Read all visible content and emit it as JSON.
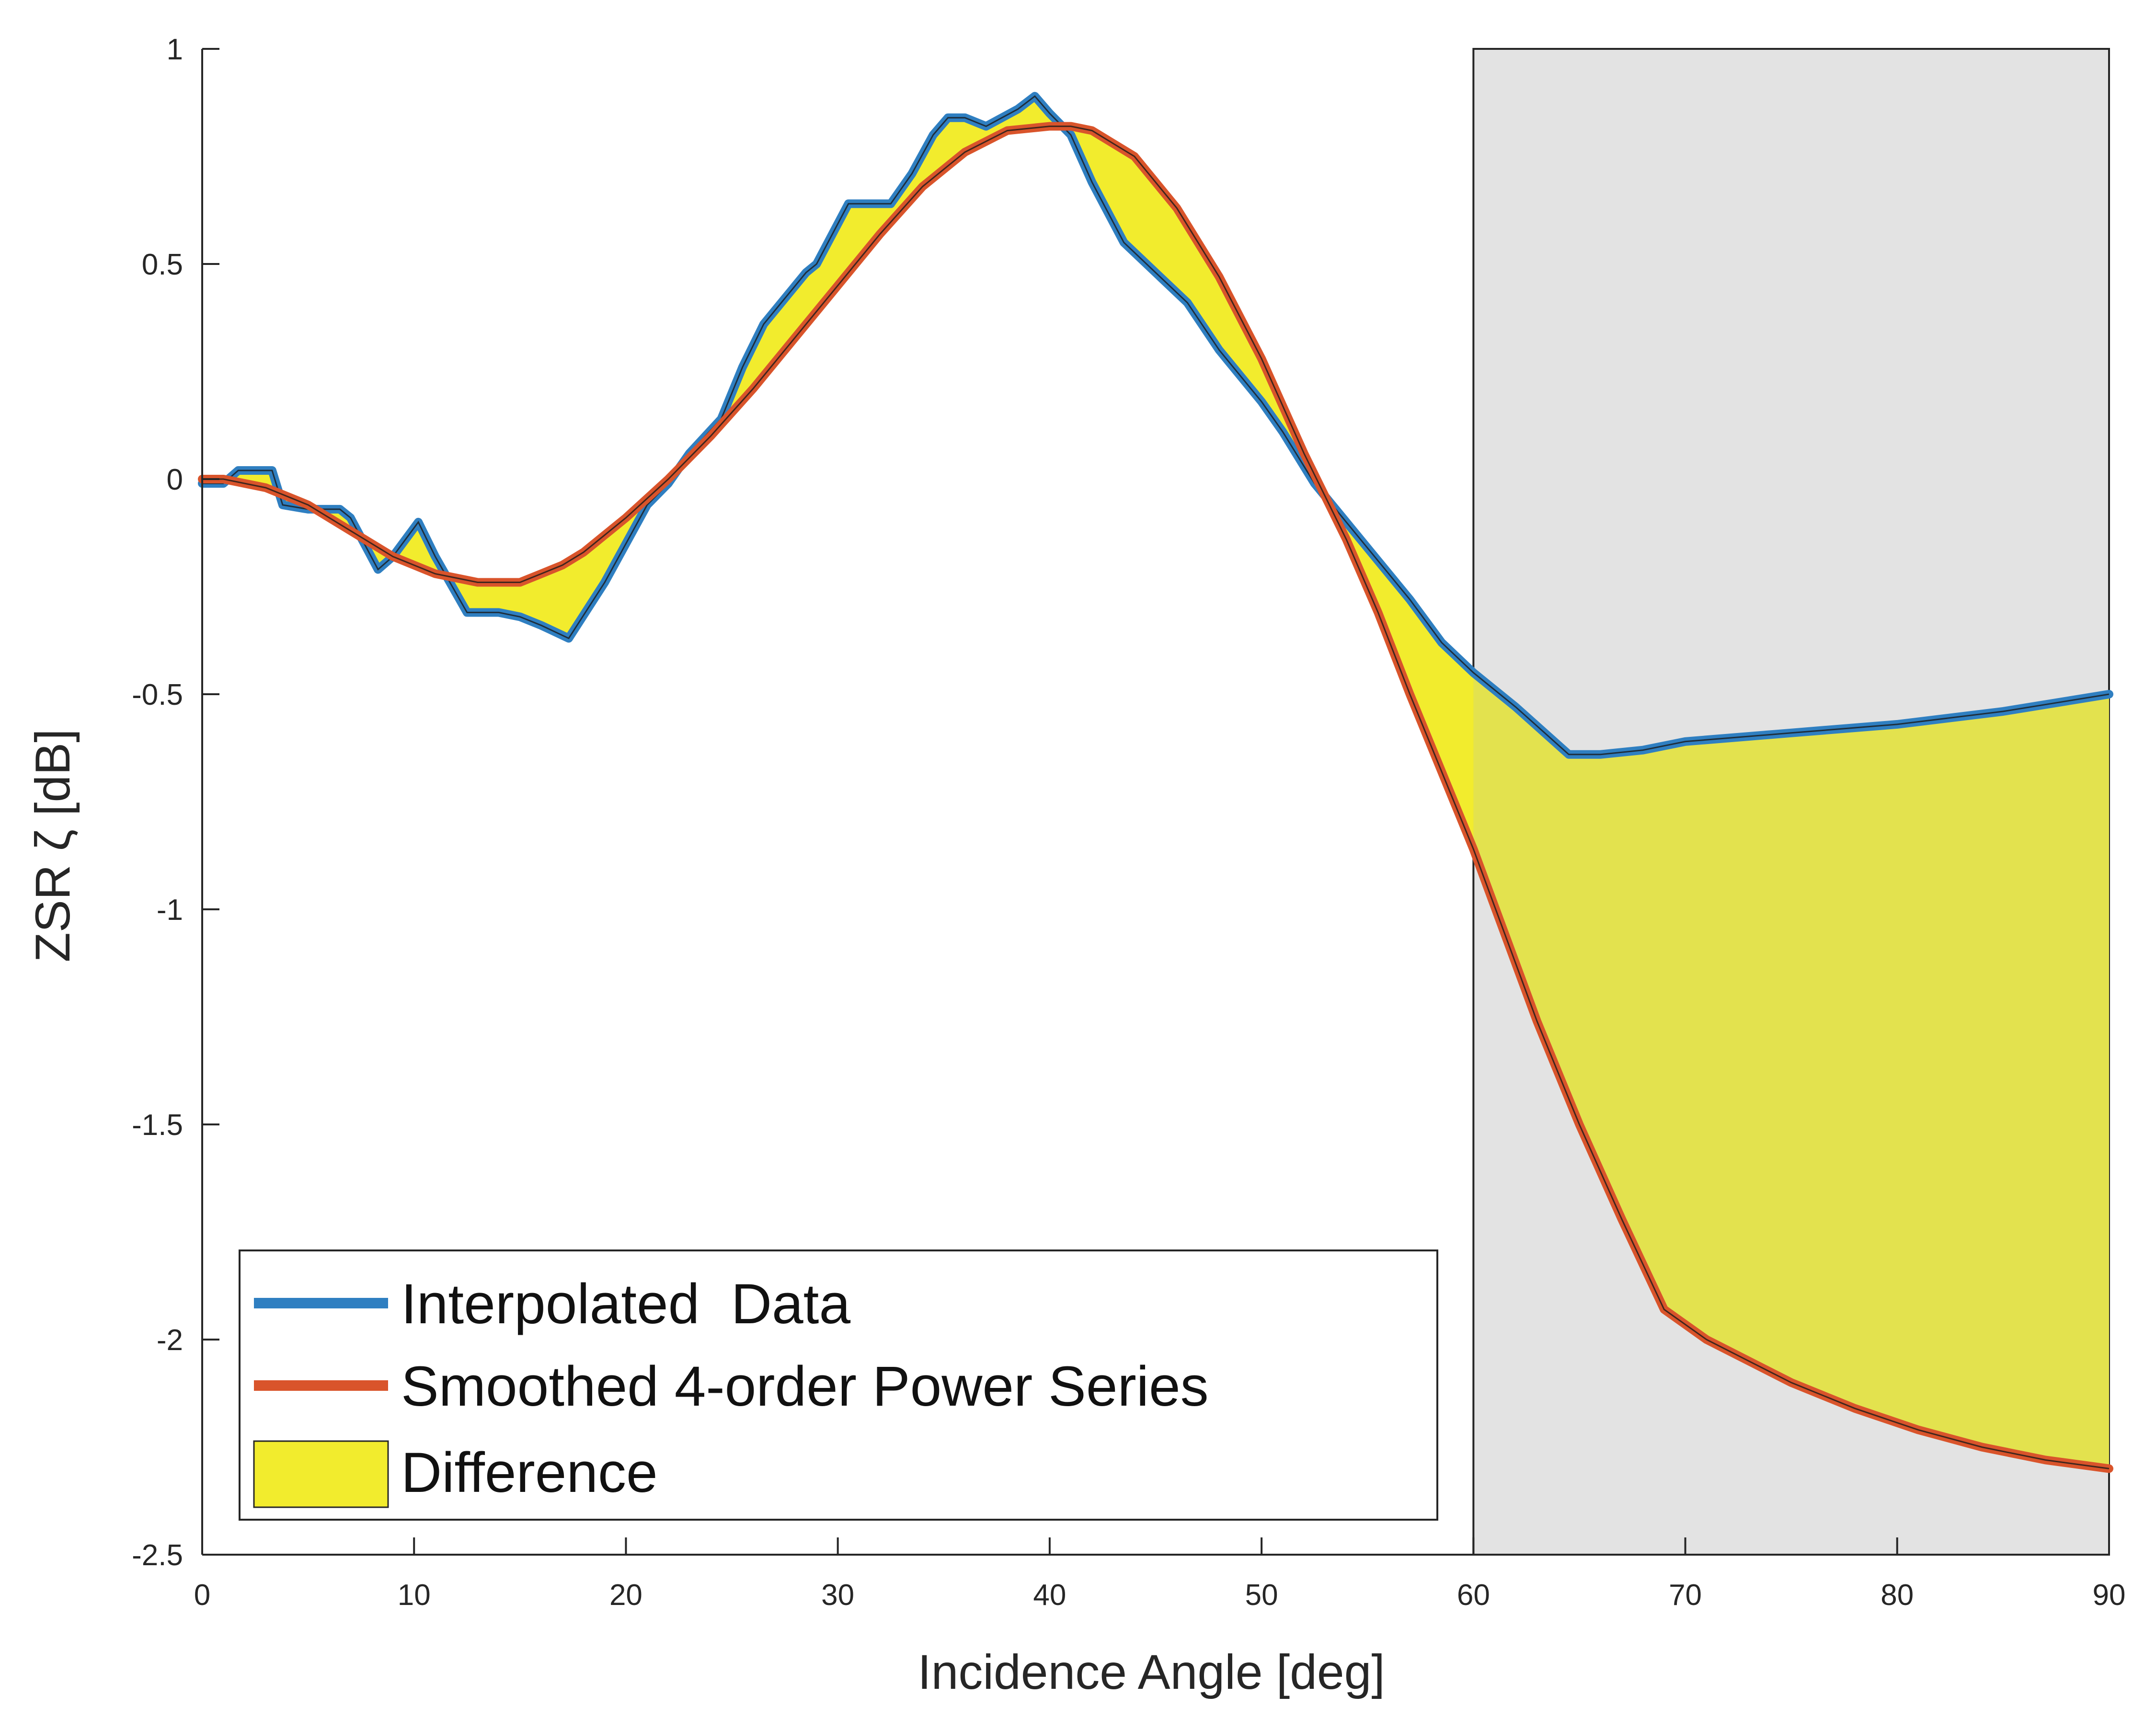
{
  "chart_data": {
    "type": "line",
    "xlabel": "Incidence Angle [deg]",
    "ylabel": "ZSR ζ [dB]",
    "xlim": [
      0,
      90
    ],
    "ylim": [
      -2.5,
      1
    ],
    "xticks": [
      "0",
      "10",
      "20",
      "30",
      "40",
      "50",
      "60",
      "70",
      "80",
      "90"
    ],
    "yticks": [
      "1",
      "0.5",
      "0",
      "-0.5",
      "-1",
      "-1.5",
      "-2",
      "-2.5"
    ],
    "grid": false,
    "shaded_region": {
      "x": [
        60,
        90
      ],
      "color": "#e3e3e3"
    },
    "legend": {
      "position": "bottom-left"
    },
    "series": [
      {
        "name": "Interpolated  Data",
        "color": "#2f7fc1",
        "x": [
          0,
          1,
          1.7,
          3.3,
          3.8,
          5,
          6.5,
          7,
          8.3,
          9,
          10.2,
          11,
          12.5,
          14,
          15,
          16,
          17.3,
          19,
          21,
          22,
          23,
          24.5,
          25.5,
          26.5,
          27.5,
          28.5,
          29,
          30.5,
          31.5,
          32.5,
          33.5,
          34.5,
          35.2,
          36,
          37,
          38.5,
          39.3,
          40,
          41,
          42,
          43.5,
          45,
          46.5,
          48,
          50,
          51,
          52.5,
          54,
          55.5,
          57,
          58.5,
          60,
          62,
          64.5,
          66,
          68,
          70,
          75,
          80,
          85,
          90
        ],
        "y": [
          -0.01,
          -0.01,
          0.02,
          0.02,
          -0.06,
          -0.07,
          -0.07,
          -0.09,
          -0.21,
          -0.18,
          -0.1,
          -0.18,
          -0.31,
          -0.31,
          -0.32,
          -0.34,
          -0.37,
          -0.24,
          -0.06,
          -0.01,
          0.06,
          0.14,
          0.26,
          0.36,
          0.42,
          0.48,
          0.5,
          0.64,
          0.64,
          0.64,
          0.71,
          0.8,
          0.84,
          0.84,
          0.82,
          0.86,
          0.89,
          0.85,
          0.8,
          0.69,
          0.55,
          0.48,
          0.41,
          0.3,
          0.18,
          0.11,
          -0.01,
          -0.1,
          -0.19,
          -0.28,
          -0.38,
          -0.45,
          -0.53,
          -0.64,
          -0.64,
          -0.63,
          -0.61,
          -0.59,
          -0.57,
          -0.54,
          -0.5
        ]
      },
      {
        "name": "Smoothed 4-order Power Series",
        "color": "#d9542b",
        "x": [
          0,
          1,
          2,
          3,
          4,
          5,
          6,
          7,
          8,
          9,
          10,
          11,
          12,
          13,
          14,
          15,
          16,
          17,
          18,
          19,
          20,
          22,
          24,
          26,
          28,
          30,
          32,
          34,
          36,
          38,
          40,
          41,
          42,
          43,
          44,
          46,
          48,
          50,
          52,
          54,
          55.5,
          57,
          58.5,
          60,
          61.5,
          63,
          65,
          67,
          69,
          71,
          73,
          75,
          78,
          81,
          84,
          87,
          90
        ],
        "y": [
          0,
          0,
          -0.01,
          -0.02,
          -0.04,
          -0.06,
          -0.09,
          -0.12,
          -0.15,
          -0.18,
          -0.2,
          -0.22,
          -0.23,
          -0.24,
          -0.24,
          -0.24,
          -0.22,
          -0.2,
          -0.17,
          -0.13,
          -0.09,
          0.0,
          0.1,
          0.21,
          0.33,
          0.45,
          0.57,
          0.68,
          0.76,
          0.81,
          0.82,
          0.82,
          0.81,
          0.78,
          0.75,
          0.63,
          0.47,
          0.28,
          0.06,
          -0.14,
          -0.31,
          -0.5,
          -0.68,
          -0.86,
          -1.06,
          -1.26,
          -1.5,
          -1.72,
          -1.93,
          -2.0,
          -2.05,
          -2.1,
          -2.16,
          -2.21,
          -2.25,
          -2.28,
          -2.3
        ]
      }
    ],
    "difference": {
      "name": "Difference",
      "color": "#f2ec2d"
    }
  }
}
